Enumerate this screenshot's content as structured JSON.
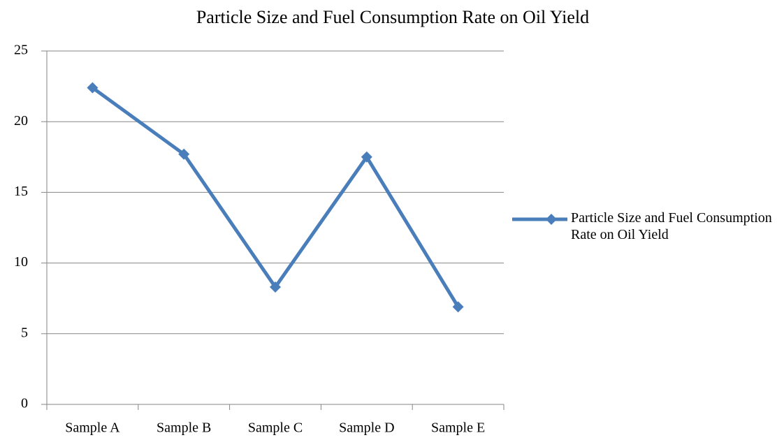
{
  "chart_data": {
    "type": "line",
    "title": "Particle Size and Fuel Consumption Rate on Oil Yield",
    "categories": [
      "Sample A",
      "Sample B",
      "Sample C",
      "Sample D",
      "Sample E"
    ],
    "series": [
      {
        "name": "Particle Size and Fuel Consumption Rate on Oil Yield",
        "color": "#4a7ebb",
        "values": [
          22.4,
          17.7,
          8.3,
          17.5,
          6.9
        ]
      }
    ],
    "ylim": [
      0,
      25
    ],
    "yticks": [
      0,
      5,
      10,
      15,
      20,
      25
    ],
    "grid": true,
    "legend": "right"
  }
}
